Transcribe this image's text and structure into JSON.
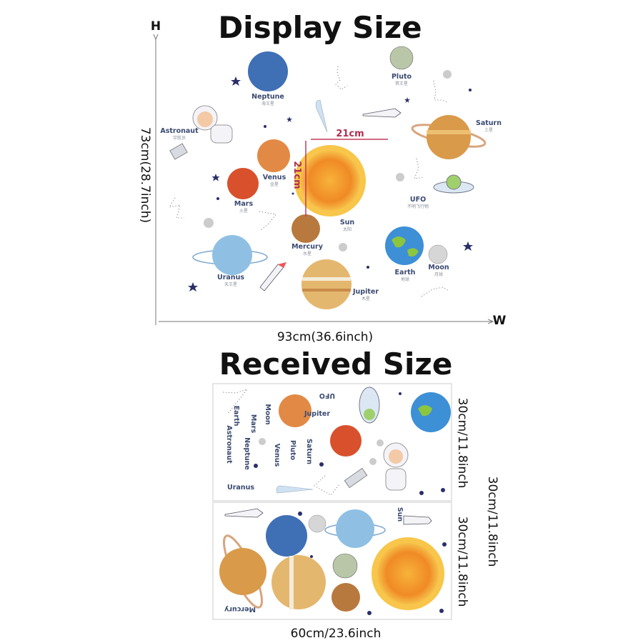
{
  "display": {
    "title": "Display Size",
    "height_axis_letter": "H",
    "width_axis_letter": "W",
    "height_label": "73cm(28.7inch)",
    "width_label": "93cm(36.6inch)",
    "sun_width_label": "21cm",
    "sun_height_label": "21cm",
    "items": [
      {
        "id": "neptune",
        "name": "Neptune",
        "cn": "海王星",
        "color": "#3f6fb5"
      },
      {
        "id": "pluto",
        "name": "Pluto",
        "cn": "冥王星",
        "color": "#b9c7a8"
      },
      {
        "id": "saturn",
        "name": "Saturn",
        "cn": "土星",
        "color": "#d99a4a"
      },
      {
        "id": "astronaut",
        "name": "Astronaut",
        "cn": "宇航员",
        "color": "#e8e8ee"
      },
      {
        "id": "venus",
        "name": "Venus",
        "cn": "金星",
        "color": "#e28a45"
      },
      {
        "id": "mars",
        "name": "Mars",
        "cn": "火星",
        "color": "#d9502c"
      },
      {
        "id": "sun",
        "name": "Sun",
        "cn": "太阳",
        "color": "#f5a623"
      },
      {
        "id": "ufo",
        "name": "UFO",
        "cn": "不明飞行物",
        "color": "#b8d8ef"
      },
      {
        "id": "mercury",
        "name": "Mercury",
        "cn": "水星",
        "color": "#b8793e"
      },
      {
        "id": "uranus",
        "name": "Uranus",
        "cn": "天王星",
        "color": "#8fc0e4"
      },
      {
        "id": "jupiter",
        "name": "Jupiter",
        "cn": "木星",
        "color": "#e4b76e"
      },
      {
        "id": "earth",
        "name": "Earth",
        "cn": "地球",
        "color": "#3d8fd6"
      },
      {
        "id": "moon",
        "name": "Moon",
        "cn": "月球",
        "color": "#d6d6d6"
      }
    ]
  },
  "received": {
    "title": "Received Size",
    "sheet1_height_label": "30cm/11.8inch",
    "sheet2_height_label": "30cm/11.8inch",
    "total_height_label": "30cm/11.8inch",
    "width_label": "60cm/23.6inch",
    "sheet1_labels": [
      "UFO",
      "Jupiter",
      "Moon",
      "Mars",
      "Earth",
      "Astronaut",
      "Neptune",
      "Venus",
      "Pluto",
      "Saturn",
      "Uranus"
    ],
    "sheet2_labels": [
      "Sun",
      "Mercury"
    ]
  },
  "colors": {
    "measure_line": "#c23a5a",
    "star": "#2a2f6a",
    "sheet_border": "#cccccc"
  }
}
